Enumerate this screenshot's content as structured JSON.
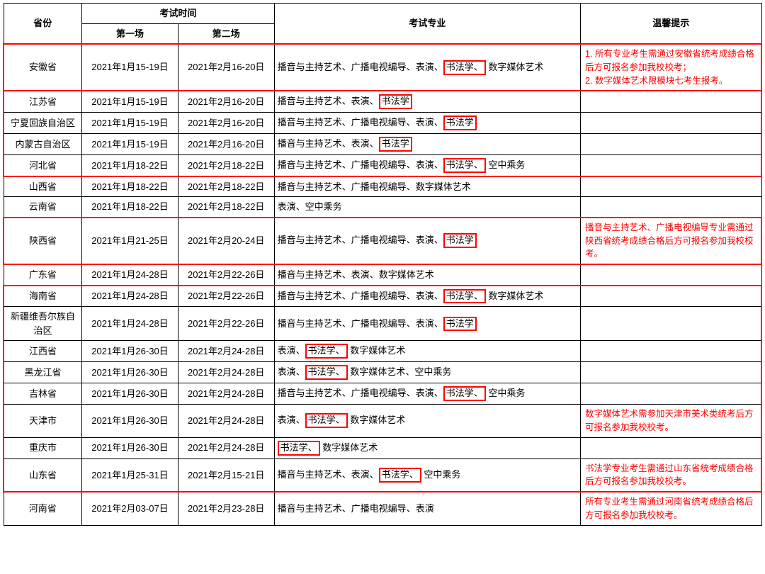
{
  "header": {
    "province": "省份",
    "exam_time": "考试时间",
    "session1": "第一场",
    "session2": "第二场",
    "major": "考试专业",
    "tip": "温馨提示"
  },
  "majors": {
    "boyin": "播音与主持艺术",
    "guangbo": "广播电视编导",
    "biaoyan": "表演",
    "shufa": "书法学",
    "shuzi": "数字媒体艺术",
    "kongzhong": "空中乘务"
  },
  "sep": "、",
  "rows": [
    {
      "province": "安徽省",
      "d1": "2021年1月15-19日",
      "d2": "2021年2月16-20日",
      "maj": [
        "boyin",
        "guangbo",
        "biaoyan",
        "shufa",
        "shuzi"
      ],
      "hl": [
        "shufa"
      ],
      "tip": "1. 所有专业考生需通过安徽省统考成绩合格后方可报名参加我校校考；\n2. 数字媒体艺术限模块七考生报考。",
      "outline": true
    },
    {
      "province": "江苏省",
      "d1": "2021年1月15-19日",
      "d2": "2021年2月16-20日",
      "maj": [
        "boyin",
        "biaoyan",
        "shufa"
      ],
      "hl": [
        "shufa"
      ],
      "tip": "",
      "group": "top"
    },
    {
      "province": "宁夏回族自治区",
      "d1": "2021年1月15-19日",
      "d2": "2021年2月16-20日",
      "maj": [
        "boyin",
        "guangbo",
        "biaoyan",
        "shufa"
      ],
      "hl": [
        "shufa"
      ],
      "tip": "",
      "group": "mid"
    },
    {
      "province": "内蒙古自治区",
      "d1": "2021年1月15-19日",
      "d2": "2021年2月16-20日",
      "maj": [
        "boyin",
        "biaoyan",
        "shufa"
      ],
      "hl": [
        "shufa"
      ],
      "tip": "",
      "group": "mid"
    },
    {
      "province": "河北省",
      "d1": "2021年1月18-22日",
      "d2": "2021年2月18-22日",
      "maj": [
        "boyin",
        "guangbo",
        "biaoyan",
        "shufa",
        "kongzhong"
      ],
      "hl": [
        "shufa"
      ],
      "tip": "",
      "group": "bottom"
    },
    {
      "province": "山西省",
      "d1": "2021年1月18-22日",
      "d2": "2021年2月18-22日",
      "maj": [
        "boyin",
        "guangbo",
        "shuzi"
      ],
      "hl": [],
      "tip": ""
    },
    {
      "province": "云南省",
      "d1": "2021年1月18-22日",
      "d2": "2021年2月18-22日",
      "maj": [
        "biaoyan",
        "kongzhong"
      ],
      "hl": [],
      "tip": ""
    },
    {
      "province": "陕西省",
      "d1": "2021年1月21-25日",
      "d2": "2021年2月20-24日",
      "maj": [
        "boyin",
        "guangbo",
        "biaoyan",
        "shufa"
      ],
      "hl": [
        "shufa"
      ],
      "tip": "播音与主持艺术、广播电视编导专业需通过陕西省统考成绩合格后方可报名参加我校校考。",
      "outline": true
    },
    {
      "province": "广东省",
      "d1": "2021年1月24-28日",
      "d2": "2021年2月22-26日",
      "maj": [
        "boyin",
        "biaoyan",
        "shuzi"
      ],
      "hl": [],
      "tip": ""
    },
    {
      "province": "海南省",
      "d1": "2021年1月24-28日",
      "d2": "2021年2月22-26日",
      "maj": [
        "boyin",
        "guangbo",
        "biaoyan",
        "shufa",
        "shuzi"
      ],
      "hl": [
        "shufa"
      ],
      "tip": "",
      "group": "top"
    },
    {
      "province": "新疆维吾尔族自治区",
      "d1": "2021年1月24-28日",
      "d2": "2021年2月22-26日",
      "maj": [
        "boyin",
        "guangbo",
        "biaoyan",
        "shufa"
      ],
      "hl": [
        "shufa"
      ],
      "tip": "",
      "group": "mid"
    },
    {
      "province": "江西省",
      "d1": "2021年1月26-30日",
      "d2": "2021年2月24-28日",
      "maj": [
        "biaoyan",
        "shufa",
        "shuzi"
      ],
      "hl": [
        "shufa"
      ],
      "tip": "",
      "group": "mid"
    },
    {
      "province": "黑龙江省",
      "d1": "2021年1月26-30日",
      "d2": "2021年2月24-28日",
      "maj": [
        "biaoyan",
        "shufa",
        "shuzi",
        "kongzhong"
      ],
      "hl": [
        "shufa"
      ],
      "tip": "",
      "group": "mid"
    },
    {
      "province": "吉林省",
      "d1": "2021年1月26-30日",
      "d2": "2021年2月24-28日",
      "maj": [
        "boyin",
        "guangbo",
        "biaoyan",
        "shufa",
        "kongzhong"
      ],
      "hl": [
        "shufa"
      ],
      "tip": "",
      "group": "mid"
    },
    {
      "province": "天津市",
      "d1": "2021年1月26-30日",
      "d2": "2021年2月24-28日",
      "maj": [
        "biaoyan",
        "shufa",
        "shuzi"
      ],
      "hl": [
        "shufa"
      ],
      "tip": "数字媒体艺术需参加天津市美术类统考后方可报名参加我校校考。",
      "group": "mid"
    },
    {
      "province": "重庆市",
      "d1": "2021年1月26-30日",
      "d2": "2021年2月24-28日",
      "maj": [
        "shufa",
        "shuzi"
      ],
      "hl": [
        "shufa"
      ],
      "tip": "",
      "group": "mid"
    },
    {
      "province": "山东省",
      "d1": "2021年1月25-31日",
      "d2": "2021年2月15-21日",
      "maj": [
        "boyin",
        "biaoyan",
        "shufa",
        "kongzhong"
      ],
      "hl": [
        "shufa"
      ],
      "tip": "书法学专业考生需通过山东省统考成绩合格后方可报名参加我校校考。",
      "group": "bottom"
    },
    {
      "province": "河南省",
      "d1": "2021年2月03-07日",
      "d2": "2021年2月23-28日",
      "maj": [
        "boyin",
        "guangbo",
        "biaoyan"
      ],
      "hl": [],
      "tip": "所有专业考生需通过河南省统考成绩合格后方可报名参加我校校考。"
    }
  ]
}
